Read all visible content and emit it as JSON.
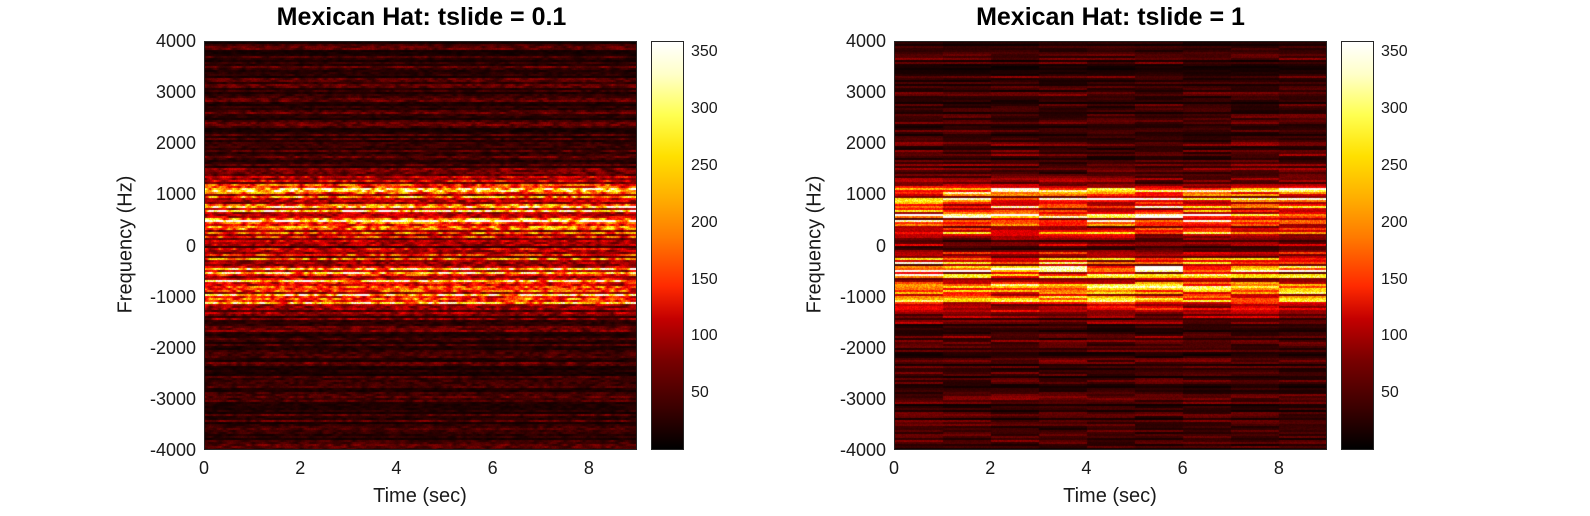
{
  "chart_data": [
    {
      "type": "heatmap",
      "title": "Mexican Hat: tslide = 0.1",
      "xlabel": "Time (sec)",
      "ylabel": "Frequency (Hz)",
      "xlim": [
        0,
        9
      ],
      "ylim": [
        -4000,
        4000
      ],
      "x_ticks": [
        "0",
        "2",
        "4",
        "6",
        "8"
      ],
      "y_ticks": [
        "4000",
        "3000",
        "2000",
        "1000",
        "0",
        "-1000",
        "-2000",
        "-3000",
        "-4000"
      ],
      "colormap": "hot",
      "colorbar": {
        "clim": [
          0,
          360
        ],
        "ticks": [
          "350",
          "300",
          "250",
          "200",
          "150",
          "100",
          "50"
        ]
      },
      "tslide": 0.1,
      "bright_bands_hz": [
        -1000,
        -500,
        500,
        1000
      ]
    },
    {
      "type": "heatmap",
      "title": "Mexican Hat: tslide = 1",
      "xlabel": "Time (sec)",
      "ylabel": "Frequency (Hz)",
      "xlim": [
        0,
        9
      ],
      "ylim": [
        -4000,
        4000
      ],
      "x_ticks": [
        "0",
        "2",
        "4",
        "6",
        "8"
      ],
      "y_ticks": [
        "4000",
        "3000",
        "2000",
        "1000",
        "0",
        "-1000",
        "-2000",
        "-3000",
        "-4000"
      ],
      "colormap": "hot",
      "colorbar": {
        "clim": [
          0,
          360
        ],
        "ticks": [
          "350",
          "300",
          "250",
          "200",
          "150",
          "100",
          "50"
        ]
      },
      "tslide": 1,
      "bright_bands_hz": [
        -1000,
        -500,
        500,
        1000
      ]
    }
  ]
}
